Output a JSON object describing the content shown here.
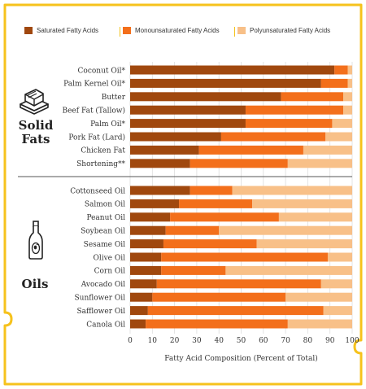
{
  "legend": {
    "saturated": "Saturated Fatty Acids",
    "mono": "Monounsaturated Fatty Acids",
    "poly": "Polyunsaturated Fatty Acids"
  },
  "groups": {
    "solid": {
      "line1": "Solid",
      "line2": "Fats",
      "icon": "butter-icon"
    },
    "oils": {
      "line1": "Oils",
      "icon": "oil-bottle-icon"
    }
  },
  "colors": {
    "saturated": "#a0480e",
    "mono": "#f36f1b",
    "poly": "#f8c088",
    "frame": "#f6c21c"
  },
  "chart_data": {
    "type": "bar",
    "orientation": "horizontal",
    "stacked": true,
    "title": "",
    "xlabel": "Fatty Acid Composition (Percent of Total)",
    "ylabel": "",
    "xlim": [
      0,
      100
    ],
    "xticks": [
      0,
      10,
      20,
      30,
      40,
      50,
      60,
      70,
      80,
      90,
      100
    ],
    "legend_position": "top",
    "grid": true,
    "categories": [
      "Coconut Oil*",
      "Palm Kernel Oil*",
      "Butter",
      "Beef Fat (Tallow)",
      "Palm Oil*",
      "Pork Fat (Lard)",
      "Chicken Fat",
      "Shortening**",
      "Cottonseed Oil",
      "Salmon Oil",
      "Peanut Oil",
      "Soybean Oil",
      "Sesame Oil",
      "Olive Oil",
      "Corn Oil",
      "Avocado Oil",
      "Sunflower Oil",
      "Safflower Oil",
      "Canola Oil"
    ],
    "groups": [
      {
        "label": "Solid Fats",
        "count": 8
      },
      {
        "label": "Oils",
        "count": 11
      }
    ],
    "series": [
      {
        "name": "Saturated Fatty Acids",
        "values": [
          92,
          86,
          68,
          52,
          52,
          41,
          31,
          27,
          27,
          22,
          18,
          16,
          15,
          14,
          14,
          12,
          10,
          8,
          7
        ]
      },
      {
        "name": "Monounsaturated Fatty Acids",
        "values": [
          6,
          12,
          28,
          44,
          39,
          47,
          47,
          44,
          19,
          33,
          49,
          24,
          42,
          75,
          29,
          74,
          60,
          79,
          64
        ]
      },
      {
        "name": "Polyunsaturated Fatty Acids",
        "values": [
          2,
          2,
          4,
          4,
          9,
          12,
          22,
          29,
          54,
          45,
          33,
          60,
          43,
          11,
          57,
          14,
          30,
          13,
          29
        ]
      }
    ]
  }
}
